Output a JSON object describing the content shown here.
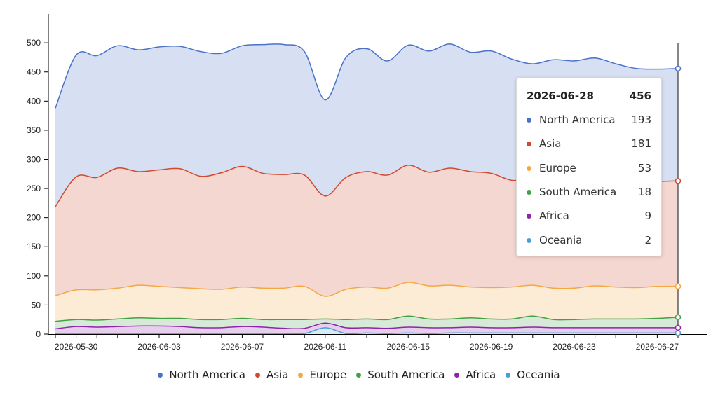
{
  "chart_data": {
    "type": "area",
    "stacked": true,
    "title": "",
    "xlabel": "",
    "ylabel": "",
    "ylim": [
      0,
      500
    ],
    "yticks": [
      "0",
      "50",
      "100",
      "150",
      "200",
      "250",
      "300",
      "350",
      "400",
      "450",
      "500"
    ],
    "xticks": [
      "2026-05-30",
      "2026-06-03",
      "2026-06-07",
      "2026-06-11",
      "2026-06-15",
      "2026-06-19",
      "2026-06-23",
      "2026-06-27"
    ],
    "x": [
      "2026-05-29",
      "2026-05-30",
      "2026-05-31",
      "2026-06-01",
      "2026-06-02",
      "2026-06-03",
      "2026-06-04",
      "2026-06-05",
      "2026-06-06",
      "2026-06-07",
      "2026-06-08",
      "2026-06-09",
      "2026-06-10",
      "2026-06-11",
      "2026-06-12",
      "2026-06-13",
      "2026-06-14",
      "2026-06-15",
      "2026-06-16",
      "2026-06-17",
      "2026-06-18",
      "2026-06-19",
      "2026-06-20",
      "2026-06-21",
      "2026-06-22",
      "2026-06-23",
      "2026-06-24",
      "2026-06-25",
      "2026-06-26",
      "2026-06-27",
      "2026-06-28"
    ],
    "grid": false,
    "legend_position": "bottom",
    "series": [
      {
        "name": "Oceania",
        "color": "#4a9fd1",
        "values": [
          1,
          1,
          1,
          1,
          1,
          1,
          1,
          1,
          1,
          1,
          1,
          1,
          1,
          11,
          1,
          2,
          1,
          2,
          1,
          2,
          2,
          2,
          2,
          2,
          2,
          2,
          2,
          2,
          2,
          2,
          2
        ]
      },
      {
        "name": "Africa",
        "color": "#8e24aa",
        "values": [
          8,
          12,
          11,
          12,
          13,
          13,
          12,
          10,
          10,
          12,
          11,
          9,
          9,
          8,
          10,
          9,
          9,
          10,
          10,
          9,
          10,
          9,
          9,
          10,
          9,
          9,
          9,
          9,
          9,
          9,
          9
        ]
      },
      {
        "name": "South America",
        "color": "#43a047",
        "values": [
          13,
          12,
          12,
          13,
          14,
          13,
          14,
          14,
          14,
          14,
          13,
          15,
          15,
          7,
          14,
          15,
          15,
          19,
          15,
          15,
          16,
          15,
          15,
          19,
          14,
          14,
          15,
          15,
          15,
          16,
          18
        ]
      },
      {
        "name": "Europe",
        "color": "#f5a742",
        "values": [
          44,
          51,
          52,
          53,
          56,
          55,
          53,
          53,
          52,
          54,
          54,
          54,
          57,
          39,
          52,
          55,
          54,
          58,
          57,
          58,
          53,
          54,
          55,
          53,
          54,
          54,
          57,
          55,
          54,
          55,
          53
        ]
      },
      {
        "name": "Asia",
        "color": "#d1492e",
        "values": [
          153,
          194,
          193,
          206,
          195,
          200,
          204,
          193,
          200,
          207,
          197,
          195,
          191,
          172,
          192,
          198,
          194,
          201,
          195,
          201,
          198,
          196,
          183,
          182,
          180,
          180,
          179,
          180,
          180,
          180,
          181
        ]
      },
      {
        "name": "North America",
        "color": "#4a72c9",
        "values": [
          169,
          209,
          209,
          210,
          209,
          211,
          210,
          214,
          205,
          207,
          221,
          223,
          212,
          165,
          206,
          211,
          196,
          206,
          208,
          213,
          205,
          210,
          208,
          198,
          212,
          210,
          212,
          203,
          196,
          193,
          193
        ]
      }
    ]
  },
  "tooltip": {
    "date": "2026-06-28",
    "total": "456",
    "rows": [
      {
        "name": "North America",
        "value": "193",
        "color": "#4a72c9"
      },
      {
        "name": "Asia",
        "value": "181",
        "color": "#d1492e"
      },
      {
        "name": "Europe",
        "value": "53",
        "color": "#f5a742"
      },
      {
        "name": "South America",
        "value": "18",
        "color": "#43a047"
      },
      {
        "name": "Africa",
        "value": "9",
        "color": "#8e24aa"
      },
      {
        "name": "Oceania",
        "value": "2",
        "color": "#4a9fd1"
      }
    ]
  },
  "legend": [
    {
      "name": "North America",
      "color": "#4a72c9"
    },
    {
      "name": "Asia",
      "color": "#d1492e"
    },
    {
      "name": "Europe",
      "color": "#f5a742"
    },
    {
      "name": "South America",
      "color": "#43a047"
    },
    {
      "name": "Africa",
      "color": "#8e24aa"
    },
    {
      "name": "Oceania",
      "color": "#4a9fd1"
    }
  ]
}
